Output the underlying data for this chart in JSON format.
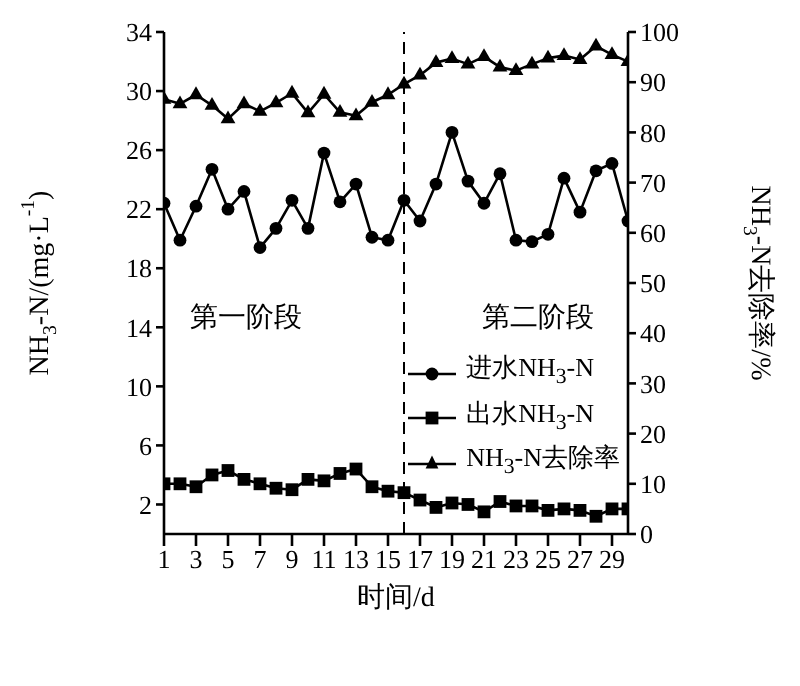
{
  "chart_data": {
    "type": "line",
    "xlabel": "时间/d",
    "ylabel": "NH$_{3}$-N/(mg·L$^{-1}$)",
    "y2label": "NH$_{3}$-N去除率/%",
    "x": [
      1,
      2,
      3,
      4,
      5,
      6,
      7,
      8,
      9,
      10,
      11,
      12,
      13,
      14,
      15,
      16,
      17,
      18,
      19,
      20,
      21,
      22,
      23,
      24,
      25,
      26,
      27,
      28,
      29,
      30
    ],
    "xlim": [
      1,
      30
    ],
    "xticks": [
      1,
      3,
      5,
      7,
      9,
      11,
      13,
      15,
      17,
      19,
      21,
      23,
      25,
      27,
      29
    ],
    "ylim": [
      0,
      34
    ],
    "yticks": [
      2,
      6,
      10,
      14,
      18,
      22,
      26,
      30,
      34
    ],
    "y2lim": [
      0,
      100
    ],
    "y2ticks": [
      0,
      10,
      20,
      30,
      40,
      50,
      60,
      70,
      80,
      90,
      100
    ],
    "series": [
      {
        "name": "进水NH$_{3}$-N",
        "color": "#000000",
        "marker": "circle",
        "values": [
          22.4,
          19.9,
          22.2,
          24.7,
          22.0,
          23.2,
          19.4,
          20.7,
          22.6,
          20.7,
          25.8,
          22.5,
          23.7,
          20.1,
          19.9,
          22.6,
          21.2,
          23.7,
          27.2,
          23.9,
          22.4,
          24.4,
          19.9,
          19.8,
          20.3,
          24.1,
          21.8,
          24.6,
          25.1,
          21.2
        ]
      },
      {
        "name": "出水NH$_{3}$-N",
        "color": "#000000",
        "marker": "square",
        "values": [
          3.4,
          3.4,
          3.2,
          4.0,
          4.3,
          3.7,
          3.4,
          3.1,
          3.0,
          3.7,
          3.6,
          4.1,
          4.4,
          3.2,
          2.9,
          2.8,
          2.3,
          1.8,
          2.1,
          2.0,
          1.5,
          2.2,
          1.9,
          1.9,
          1.6,
          1.7,
          1.6,
          1.2,
          1.7,
          1.7
        ]
      },
      {
        "name": "NH$_{3}$-N去除率",
        "color": "#000000",
        "marker": "triangle",
        "axis": "y2",
        "values": [
          86.6,
          85.7,
          87.5,
          85.4,
          82.7,
          85.7,
          84.2,
          85.9,
          87.8,
          83.9,
          87.6,
          84.0,
          83.3,
          86.0,
          87.5,
          89.6,
          91.4,
          93.9,
          94.7,
          93.6,
          95.1,
          93.0,
          92.3,
          93.6,
          94.8,
          95.3,
          94.5,
          97.2,
          95.5,
          94.1
        ]
      }
    ],
    "ref_lines": [
      {
        "axis": "x",
        "value": 16,
        "line_style": "dashed",
        "color": "#000000"
      }
    ],
    "annotations": [
      "第一阶段",
      "第二阶段"
    ],
    "legend": "bottom right",
    "grid": false,
    "line_style": "solid"
  }
}
